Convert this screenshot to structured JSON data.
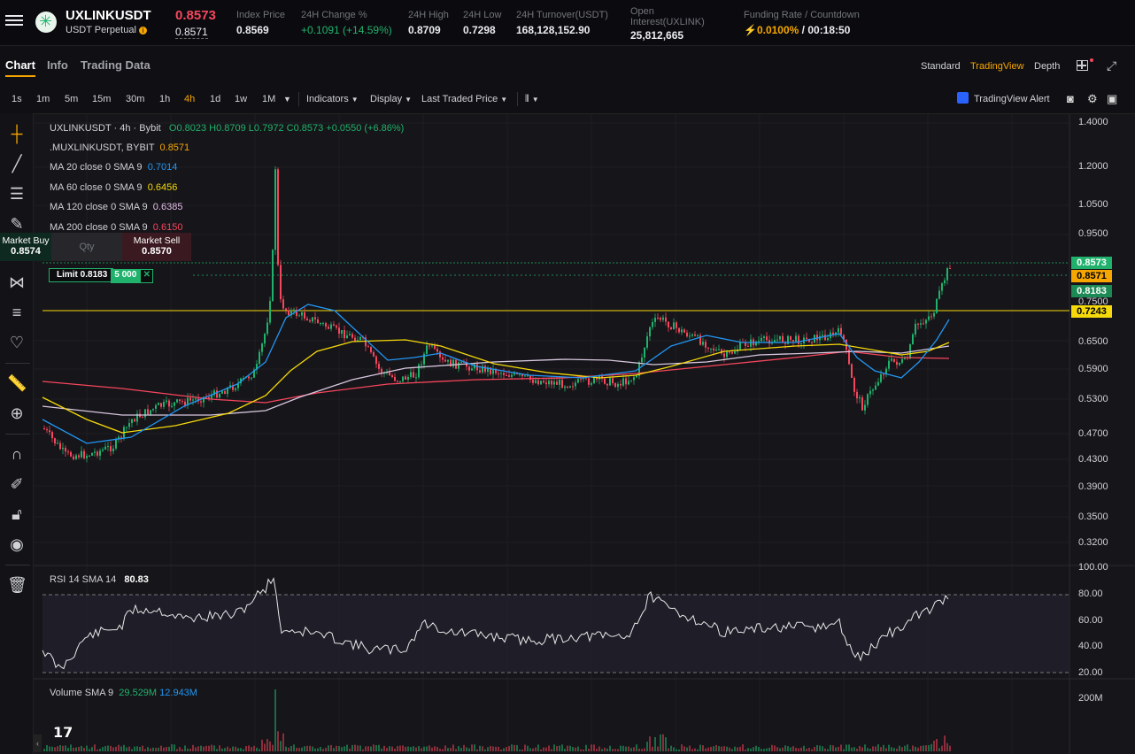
{
  "header": {
    "symbol": "UXLINKUSDT",
    "contract_type": "USDT Perpetual",
    "last_price": "0.8573",
    "mark_price": "0.8571",
    "stats": [
      {
        "label": "Index Price",
        "value": "0.8569"
      },
      {
        "label": "24H Change %",
        "value": "+0.1091 (+14.59%)"
      },
      {
        "label": "24H High",
        "value": "0.8709"
      },
      {
        "label": "24H Low",
        "value": "0.7298"
      },
      {
        "label": "24H Turnover(USDT)",
        "value": "168,128,152.90"
      },
      {
        "label": "Open Interest(UXLINK)",
        "value": "25,812,665"
      },
      {
        "label": "Funding Rate / Countdown",
        "rate": "0.0100%",
        "countdown": "/ 00:18:50"
      }
    ]
  },
  "tabs": [
    "Chart",
    "Info",
    "Trading Data"
  ],
  "active_tab": "Chart",
  "views": [
    "Standard",
    "TradingView",
    "Depth"
  ],
  "active_view": "TradingView",
  "intervals": [
    "1s",
    "1m",
    "5m",
    "15m",
    "30m",
    "1h",
    "4h",
    "1d",
    "1w",
    "1M"
  ],
  "active_interval": "4h",
  "toolbar": {
    "indicators": "Indicators",
    "display": "Display",
    "price_type": "Last Traded Price",
    "alert": "TradingView Alert"
  },
  "legend": {
    "title": "UXLINKUSDT · 4h · Bybit",
    "ohlc": "O0.8023 H0.8709 L0.7972 C0.8573 +0.0550 (+6.86%)",
    "mark_symbol": ".MUXLINKUSDT, BYBIT",
    "mark_value": "0.8571",
    "ma": [
      {
        "label": "MA 20 close 0 SMA 9",
        "value": "0.7014",
        "color": "#2196f3"
      },
      {
        "label": "MA 60 close 0 SMA 9",
        "value": "0.6456",
        "color": "#f5d90a"
      },
      {
        "label": "MA 120 close 0 SMA 9",
        "value": "0.6385",
        "color": "#e1bee7"
      },
      {
        "label": "MA 200 close 0 SMA 9",
        "value": "0.6150",
        "color": "#f6465d"
      }
    ]
  },
  "trade_panel": {
    "buy_label": "Market Buy",
    "buy_price": "0.8574",
    "qty_placeholder": "Qty",
    "sell_label": "Market Sell",
    "sell_price": "0.8570"
  },
  "limit_order": {
    "label": "Limit 0.8183",
    "qty": "5 000",
    "close": "✕"
  },
  "price_axis": [
    "1.4000",
    "1.2000",
    "1.0500",
    "0.9500",
    "0.6500",
    "0.5900",
    "0.5300",
    "0.4700",
    "0.4300",
    "0.3900",
    "0.3500",
    "0.3200"
  ],
  "price_tags": [
    {
      "value": "0.8573",
      "bg": "#20b26c",
      "fg": "#ffffff"
    },
    {
      "value": "0.8571",
      "bg": "#f7a600",
      "fg": "#000000"
    },
    {
      "value": "0.8183",
      "bg": "#1c8a55",
      "fg": "#ffffff"
    },
    {
      "value": "0.7243",
      "bg": "#f5d90a",
      "fg": "#000000"
    }
  ],
  "hidden_axis_label": "0.7500",
  "rsi": {
    "label": "RSI 14 SMA 14",
    "value": "80.83",
    "axis": [
      "100.00",
      "80.00",
      "60.00",
      "40.00",
      "20.00"
    ]
  },
  "volume": {
    "label": "Volume SMA 9",
    "v1": "29.529M",
    "v2": "12.943M",
    "axis": "200M"
  },
  "colors": {
    "up": "#20b26c",
    "down": "#f6465d",
    "accent": "#f7a600"
  },
  "icons": [
    "crosshair-icon",
    "trendline-icon",
    "fib-icon",
    "brush-icon",
    "pattern-icon",
    "prediction-icon",
    "heart-icon",
    "ruler-icon",
    "zoom-icon",
    "magnet-icon",
    "lock-pencil-icon",
    "lock-icon",
    "eye-icon",
    "trash-icon"
  ]
}
